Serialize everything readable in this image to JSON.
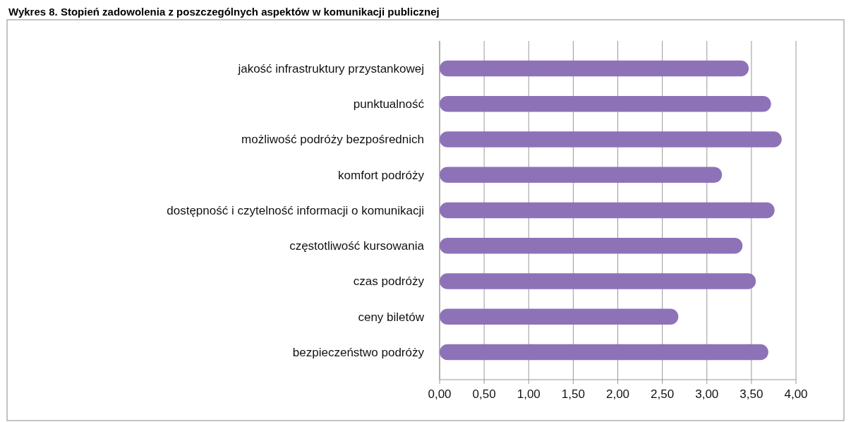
{
  "chart_data": {
    "type": "bar",
    "orientation": "horizontal",
    "title": "Wykres 8. Stopień zadowolenia z poszczególnych aspektów w komunikacji publicznej",
    "categories": [
      "jakość infrastruktury przystankowej",
      "punktualność",
      "możliwość podróży bezpośrednich",
      "komfort podróży",
      "dostępność i czytelność informacji o komunikacji",
      "częstotliwość kursowania",
      "czas podróży",
      "ceny biletów",
      "bezpieczeństwo podróży"
    ],
    "values": [
      3.47,
      3.72,
      3.84,
      3.17,
      3.76,
      3.4,
      3.55,
      2.68,
      3.69
    ],
    "color": "#8e72b8",
    "xlim": [
      0,
      4
    ],
    "xticks": [
      {
        "value": 0,
        "label": "0,00"
      },
      {
        "value": 0.5,
        "label": "0,50"
      },
      {
        "value": 1,
        "label": "1,00"
      },
      {
        "value": 1.5,
        "label": "1,50"
      },
      {
        "value": 2,
        "label": "2,00"
      },
      {
        "value": 2.5,
        "label": "2,50"
      },
      {
        "value": 3,
        "label": "3,00"
      },
      {
        "value": 3.5,
        "label": "3,50"
      },
      {
        "value": 4,
        "label": "4,00"
      }
    ],
    "grid": "x"
  }
}
